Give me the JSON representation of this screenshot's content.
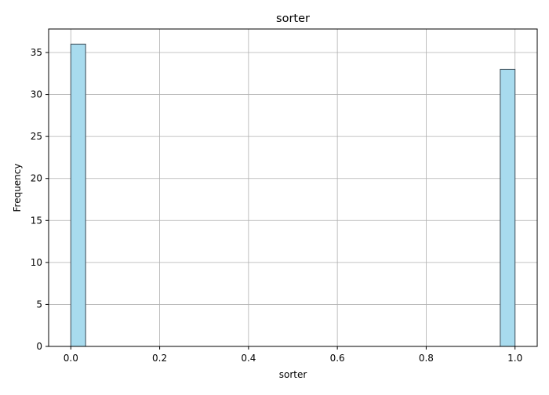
{
  "chart_data": {
    "type": "bar",
    "title": "sorter",
    "xlabel": "sorter",
    "ylabel": "Frequency",
    "xlim": [
      -0.05,
      1.05
    ],
    "ylim": [
      0,
      37.8
    ],
    "xticks": [
      0.0,
      0.2,
      0.4,
      0.6,
      0.8,
      1.0
    ],
    "xtick_labels": [
      "0.0",
      "0.2",
      "0.4",
      "0.6",
      "0.8",
      "1.0"
    ],
    "yticks": [
      0,
      5,
      10,
      15,
      20,
      25,
      30,
      35
    ],
    "ytick_labels": [
      "0",
      "5",
      "10",
      "15",
      "20",
      "25",
      "30",
      "35"
    ],
    "bins": [
      {
        "x0": 0.0,
        "x1": 0.0333,
        "count": 36
      },
      {
        "x0": 0.9667,
        "x1": 1.0,
        "count": 33
      }
    ],
    "grid": true,
    "bar_fill": "#a8dbee",
    "bar_edge": "#3b4a55"
  }
}
